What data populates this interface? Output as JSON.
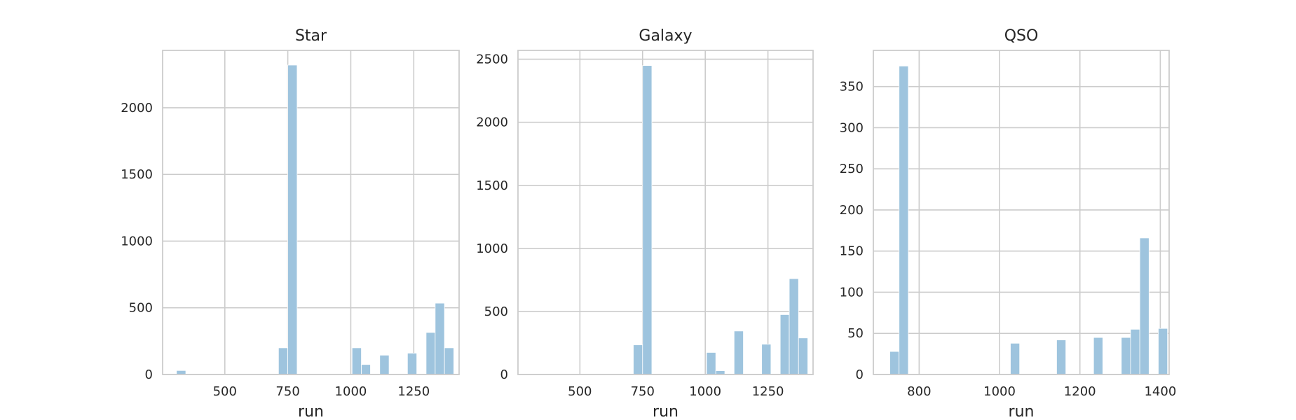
{
  "chart_data": [
    {
      "type": "bar",
      "title": "Star",
      "xlabel": "run",
      "ylabel": "",
      "xlim": [
        253,
        1430
      ],
      "ylim": [
        0,
        2430
      ],
      "xticks": [
        500,
        750,
        1000,
        1250
      ],
      "yticks": [
        0,
        500,
        1000,
        1500,
        2000
      ],
      "grid": true,
      "color": "#9ec4de",
      "bins": [
        {
          "x0": 308,
          "x1": 345,
          "count": 30
        },
        {
          "x0": 713,
          "x1": 750,
          "count": 200
        },
        {
          "x0": 750,
          "x1": 787,
          "count": 2320
        },
        {
          "x0": 1005,
          "x1": 1042,
          "count": 200
        },
        {
          "x0": 1042,
          "x1": 1078,
          "count": 75
        },
        {
          "x0": 1115,
          "x1": 1152,
          "count": 145
        },
        {
          "x0": 1225,
          "x1": 1262,
          "count": 160
        },
        {
          "x0": 1299,
          "x1": 1335,
          "count": 315
        },
        {
          "x0": 1335,
          "x1": 1372,
          "count": 535
        },
        {
          "x0": 1372,
          "x1": 1409,
          "count": 200
        }
      ]
    },
    {
      "type": "bar",
      "title": "Galaxy",
      "xlabel": "run",
      "ylabel": "",
      "xlim": [
        253,
        1430
      ],
      "ylim": [
        0,
        2570
      ],
      "xticks": [
        500,
        750,
        1000,
        1250
      ],
      "yticks": [
        0,
        500,
        1000,
        1500,
        2000,
        2500
      ],
      "grid": true,
      "color": "#9ec4de",
      "bins": [
        {
          "x0": 713,
          "x1": 750,
          "count": 235
        },
        {
          "x0": 750,
          "x1": 787,
          "count": 2450
        },
        {
          "x0": 1005,
          "x1": 1042,
          "count": 175
        },
        {
          "x0": 1042,
          "x1": 1078,
          "count": 30
        },
        {
          "x0": 1115,
          "x1": 1152,
          "count": 345
        },
        {
          "x0": 1225,
          "x1": 1262,
          "count": 240
        },
        {
          "x0": 1299,
          "x1": 1335,
          "count": 475
        },
        {
          "x0": 1335,
          "x1": 1372,
          "count": 760
        },
        {
          "x0": 1372,
          "x1": 1409,
          "count": 290
        }
      ]
    },
    {
      "type": "bar",
      "title": "QSO",
      "xlabel": "run",
      "ylabel": "",
      "xlim": [
        686,
        1422
      ],
      "ylim": [
        0,
        394
      ],
      "xticks": [
        800,
        1000,
        1200,
        1400
      ],
      "yticks": [
        0,
        50,
        100,
        150,
        200,
        250,
        300,
        350
      ],
      "grid": true,
      "color": "#9ec4de",
      "bins": [
        {
          "x0": 727,
          "x1": 750,
          "count": 28
        },
        {
          "x0": 750,
          "x1": 773,
          "count": 375
        },
        {
          "x0": 1027,
          "x1": 1050,
          "count": 38
        },
        {
          "x0": 1142,
          "x1": 1165,
          "count": 42
        },
        {
          "x0": 1234,
          "x1": 1257,
          "count": 45
        },
        {
          "x0": 1303,
          "x1": 1326,
          "count": 45
        },
        {
          "x0": 1326,
          "x1": 1349,
          "count": 55
        },
        {
          "x0": 1349,
          "x1": 1372,
          "count": 166
        },
        {
          "x0": 1395,
          "x1": 1418,
          "count": 56
        }
      ]
    }
  ]
}
